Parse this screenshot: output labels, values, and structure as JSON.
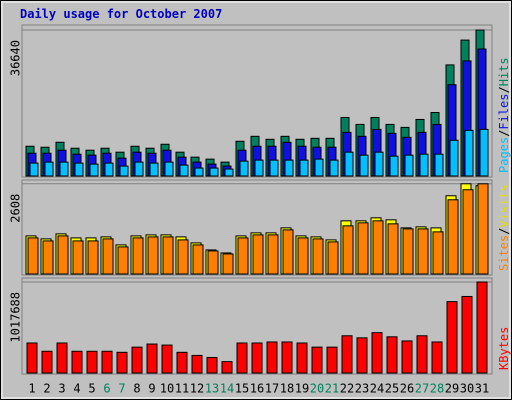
{
  "chart_data": [
    {
      "type": "bar",
      "title": "Daily usage for October 2007",
      "ylim": [
        0,
        37400
      ],
      "yticks": [
        36640
      ],
      "separator": "/",
      "series": [
        {
          "name": "Hits",
          "color": "#00805c",
          "values": [
            7470,
            7221,
            8466,
            6972,
            6474,
            6972,
            5976,
            7470,
            6972,
            7968,
            5976,
            4731,
            4233,
            3486,
            8715,
            9960,
            9213,
            9960,
            9213,
            9462,
            9462,
            14691,
            12948,
            14691,
            12948,
            12201,
            14193,
            15936,
            27888,
            34113,
            36640
          ]
        },
        {
          "name": "Files",
          "color": "#1010e0",
          "values": [
            5727,
            5727,
            6474,
            5478,
            5229,
            5727,
            4482,
            5976,
            5727,
            6474,
            4731,
            3486,
            2988,
            2490,
            6474,
            7470,
            7470,
            8466,
            7470,
            7221,
            7221,
            10956,
            9960,
            11703,
            10707,
            9711,
            10956,
            12948,
            22908,
            28884,
            31872
          ]
        },
        {
          "name": "Pages",
          "color": "#00c0ff",
          "values": [
            3237,
            3486,
            3486,
            3237,
            2988,
            3237,
            2490,
            3486,
            3237,
            3486,
            2739,
            1992,
            1992,
            1743,
            3735,
            3984,
            3984,
            3984,
            3984,
            4233,
            3984,
            5976,
            5229,
            5976,
            4980,
            5229,
            5478,
            5478,
            8964,
            11454,
            11703
          ]
        }
      ]
    },
    {
      "type": "bar",
      "ylim": [
        0,
        2660
      ],
      "yticks": [
        2608
      ],
      "separator": "/",
      "series": [
        {
          "name": "Visits",
          "color": "#ffff00",
          "values": [
            1102,
            1015,
            1160,
            1044,
            1044,
            1073,
            841,
            1102,
            1131,
            1131,
            1073,
            899,
            696,
            609,
            1102,
            1189,
            1189,
            1334,
            1102,
            1073,
            986,
            1537,
            1537,
            1624,
            1566,
            1334,
            1363,
            1334,
            2262,
            2608,
            2552
          ]
        },
        {
          "name": "Sites",
          "color": "#ff8000",
          "values": [
            1044,
            957,
            1102,
            957,
            957,
            1015,
            783,
            1044,
            1073,
            1073,
            986,
            841,
            667,
            580,
            1044,
            1131,
            1131,
            1276,
            1044,
            1015,
            928,
            1392,
            1479,
            1537,
            1450,
            1305,
            1305,
            1218,
            2146,
            2436,
            2608
          ]
        }
      ]
    },
    {
      "type": "bar",
      "ylim": [
        0,
        1040000
      ],
      "yticks": [
        1017688
      ],
      "categories": [
        "1",
        "2",
        "3",
        "4",
        "5",
        "6",
        "7",
        "8",
        "9",
        "10",
        "11",
        "12",
        "13",
        "14",
        "15",
        "16",
        "17",
        "18",
        "19",
        "20",
        "21",
        "22",
        "23",
        "24",
        "25",
        "26",
        "27",
        "28",
        "29",
        "30",
        "31"
      ],
      "category_colors": [
        "#000000",
        "#000000",
        "#000000",
        "#000000",
        "#000000",
        "#00805c",
        "#00805c",
        "#000000",
        "#000000",
        "#000000",
        "#000000",
        "#000000",
        "#00805c",
        "#00805c",
        "#000000",
        "#000000",
        "#000000",
        "#000000",
        "#000000",
        "#00805c",
        "#00805c",
        "#000000",
        "#000000",
        "#000000",
        "#000000",
        "#000000",
        "#00805c",
        "#00805c",
        "#000000",
        "#000000",
        "#000000"
      ],
      "series": [
        {
          "name": "KBytes",
          "color": "#ff0000",
          "values": [
            335385,
            242865,
            335385,
            242865,
            242865,
            242865,
            231300,
            289125,
            323820,
            312255,
            231300,
            196605,
            173475,
            127215,
            335385,
            335385,
            346950,
            346950,
            335385,
            289125,
            289125,
            416340,
            393210,
            451035,
            404775,
            358515,
            416340,
            346950,
            797985,
            855810,
            1017688
          ]
        }
      ]
    }
  ]
}
